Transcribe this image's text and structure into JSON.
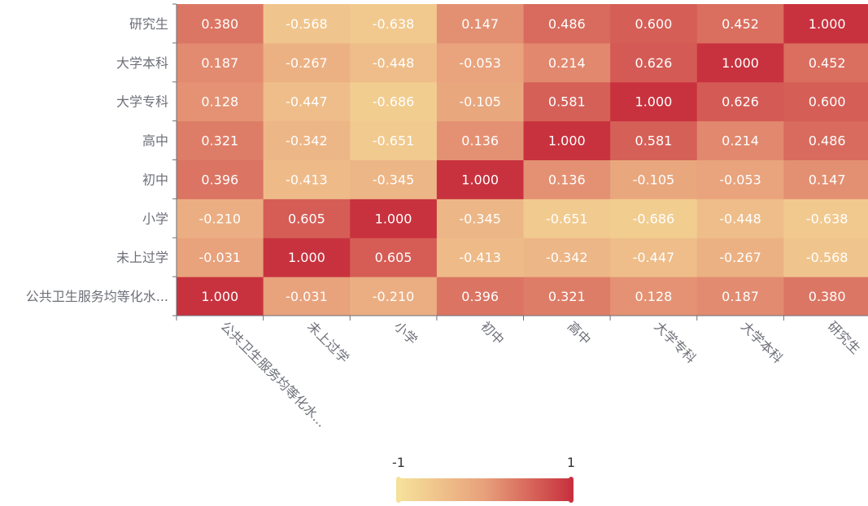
{
  "chart_data": {
    "type": "heatmap",
    "x_categories": [
      "公共卫生服务均等化水...",
      "未上过学",
      "小学",
      "初中",
      "高中",
      "大学专科",
      "大学本科",
      "研究生"
    ],
    "y_categories": [
      "公共卫生服务均等化水...",
      "未上过学",
      "小学",
      "初中",
      "高中",
      "大学专科",
      "大学本科",
      "研究生"
    ],
    "matrix": [
      [
        1.0,
        -0.031,
        -0.21,
        0.396,
        0.321,
        0.128,
        0.187,
        0.38
      ],
      [
        -0.031,
        1.0,
        0.605,
        -0.413,
        -0.342,
        -0.447,
        -0.267,
        -0.568
      ],
      [
        -0.21,
        0.605,
        1.0,
        -0.345,
        -0.651,
        -0.686,
        -0.448,
        -0.638
      ],
      [
        0.396,
        -0.413,
        -0.345,
        1.0,
        0.136,
        -0.105,
        -0.053,
        0.147
      ],
      [
        0.321,
        -0.342,
        -0.651,
        0.136,
        1.0,
        0.581,
        0.214,
        0.486
      ],
      [
        0.128,
        -0.447,
        -0.686,
        -0.105,
        0.581,
        1.0,
        0.626,
        0.6
      ],
      [
        0.187,
        -0.267,
        -0.448,
        -0.053,
        0.214,
        0.626,
        1.0,
        0.452
      ],
      [
        0.38,
        -0.568,
        -0.638,
        0.147,
        0.486,
        0.6,
        0.452,
        1.0
      ]
    ],
    "value_range": [
      -1,
      1
    ],
    "decimals": 3,
    "visual_map": {
      "min_label": "-1",
      "max_label": "1",
      "orientation": "horizontal",
      "position": "bottom-center"
    },
    "colors": {
      "low": "#f6e19a",
      "mid": "#e8a07b",
      "high": "#c8323e",
      "label_text": "#ffffff",
      "axis_text": "#6e7079",
      "axis_line": "#6e7079"
    }
  }
}
